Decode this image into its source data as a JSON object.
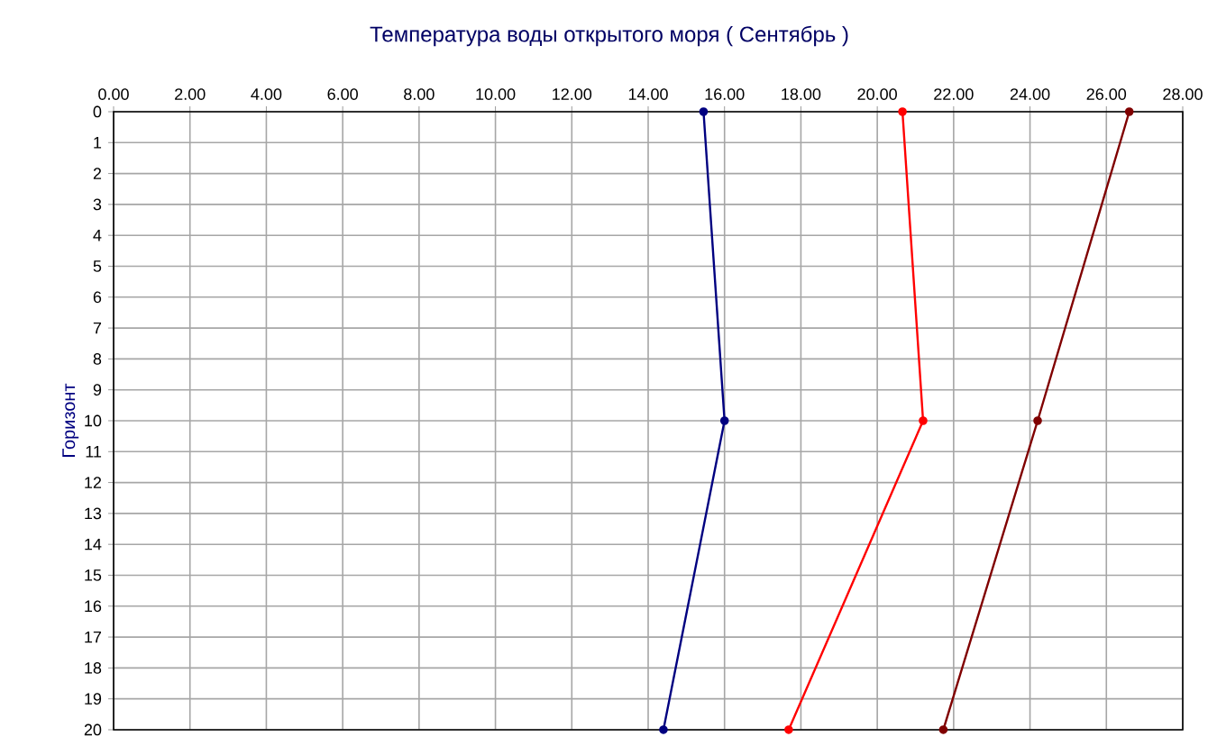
{
  "chart_data": {
    "type": "line",
    "title": "Температура воды открытого моря    ( Сентябрь )",
    "ylabel": "Горизонт",
    "series": [
      {
        "color": "#000080",
        "x": [
          15.45,
          16.0,
          14.4
        ],
        "values": [
          0,
          10,
          20
        ]
      },
      {
        "color": "#ff0000",
        "x": [
          20.66,
          21.2,
          17.68
        ],
        "values": [
          0,
          10,
          20
        ]
      },
      {
        "color": "#800000",
        "x": [
          26.6,
          24.2,
          21.73
        ],
        "values": [
          0,
          10,
          20
        ]
      }
    ],
    "xlim": [
      0,
      28
    ],
    "xticks": [
      {
        "value": 0,
        "label": "0.00"
      },
      {
        "value": 2,
        "label": "2.00"
      },
      {
        "value": 4,
        "label": "4.00"
      },
      {
        "value": 6,
        "label": "6.00"
      },
      {
        "value": 8,
        "label": "8.00"
      },
      {
        "value": 10,
        "label": "10.00"
      },
      {
        "value": 12,
        "label": "12.00"
      },
      {
        "value": 14,
        "label": "14.00"
      },
      {
        "value": 16,
        "label": "16.00"
      },
      {
        "value": 18,
        "label": "18.00"
      },
      {
        "value": 20,
        "label": "20.00"
      },
      {
        "value": 22,
        "label": "22.00"
      },
      {
        "value": 24,
        "label": "24.00"
      },
      {
        "value": 26,
        "label": "26.00"
      },
      {
        "value": 28,
        "label": "28.00"
      }
    ],
    "ylim": [
      20,
      0
    ],
    "yticks": [
      0,
      1,
      2,
      3,
      4,
      5,
      6,
      7,
      8,
      9,
      10,
      11,
      12,
      13,
      14,
      15,
      16,
      17,
      18,
      19,
      20
    ],
    "grid": true,
    "marker": "circle",
    "line_style": "solid"
  }
}
